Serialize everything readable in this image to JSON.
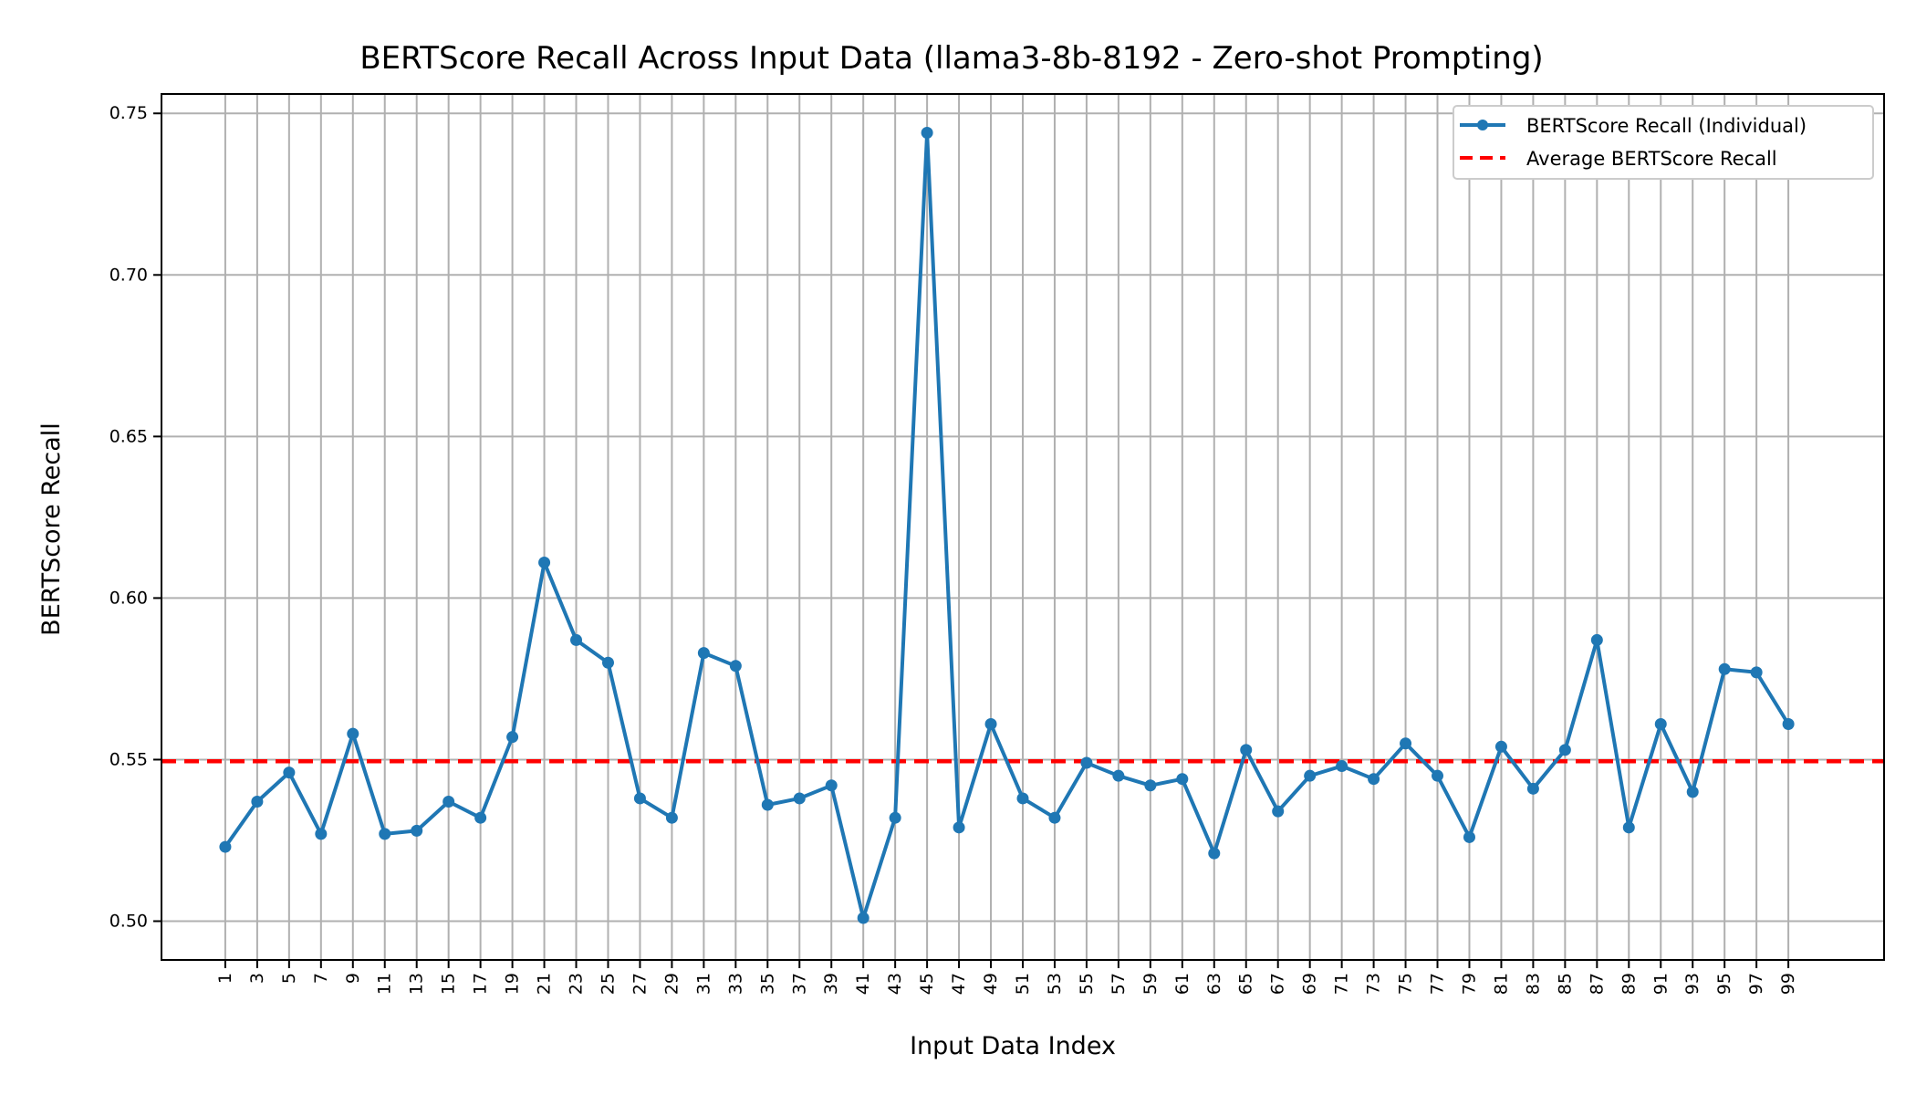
{
  "chart_data": {
    "type": "line",
    "title": "BERTScore Recall Across Input Data (llama3-8b-8192 - Zero-shot Prompting)",
    "xlabel": "Input Data Index",
    "ylabel": "BERTScore Recall",
    "ylim": [
      0.488,
      0.756
    ],
    "xlim": [
      -2,
      52
    ],
    "x_ticks": [
      "1",
      "3",
      "5",
      "7",
      "9",
      "11",
      "13",
      "15",
      "17",
      "19",
      "21",
      "23",
      "25",
      "27",
      "29",
      "31",
      "33",
      "35",
      "37",
      "39",
      "41",
      "43",
      "45",
      "47",
      "49",
      "51",
      "53",
      "55",
      "57",
      "59",
      "61",
      "63",
      "65",
      "67",
      "69",
      "71",
      "73",
      "75",
      "77",
      "79",
      "81",
      "83",
      "85",
      "87",
      "89",
      "91",
      "93",
      "95",
      "97",
      "99"
    ],
    "y_ticks": [
      0.5,
      0.55,
      0.6,
      0.65,
      0.7,
      0.75
    ],
    "y_tick_labels": [
      "0.50",
      "0.55",
      "0.60",
      "0.65",
      "0.70",
      "0.75"
    ],
    "grid": true,
    "legend_position": "top-right",
    "series": [
      {
        "name": "BERTScore Recall (Individual)",
        "style": "line-with-markers",
        "color": "#1f77b4",
        "values": [
          0.523,
          0.537,
          0.546,
          0.527,
          0.558,
          0.527,
          0.528,
          0.537,
          0.532,
          0.557,
          0.611,
          0.587,
          0.58,
          0.538,
          0.532,
          0.583,
          0.579,
          0.536,
          0.538,
          0.542,
          0.501,
          0.532,
          0.744,
          0.529,
          0.561,
          0.538,
          0.532,
          0.549,
          0.545,
          0.542,
          0.544,
          0.521,
          0.553,
          0.534,
          0.545,
          0.548,
          0.544,
          0.555,
          0.545,
          0.526,
          0.554,
          0.541,
          0.553,
          0.587,
          0.529,
          0.561,
          0.54,
          0.578,
          0.577,
          0.561
        ]
      },
      {
        "name": "Average BERTScore Recall",
        "style": "dashed",
        "color": "#ff0000",
        "value": 0.5495
      }
    ]
  }
}
